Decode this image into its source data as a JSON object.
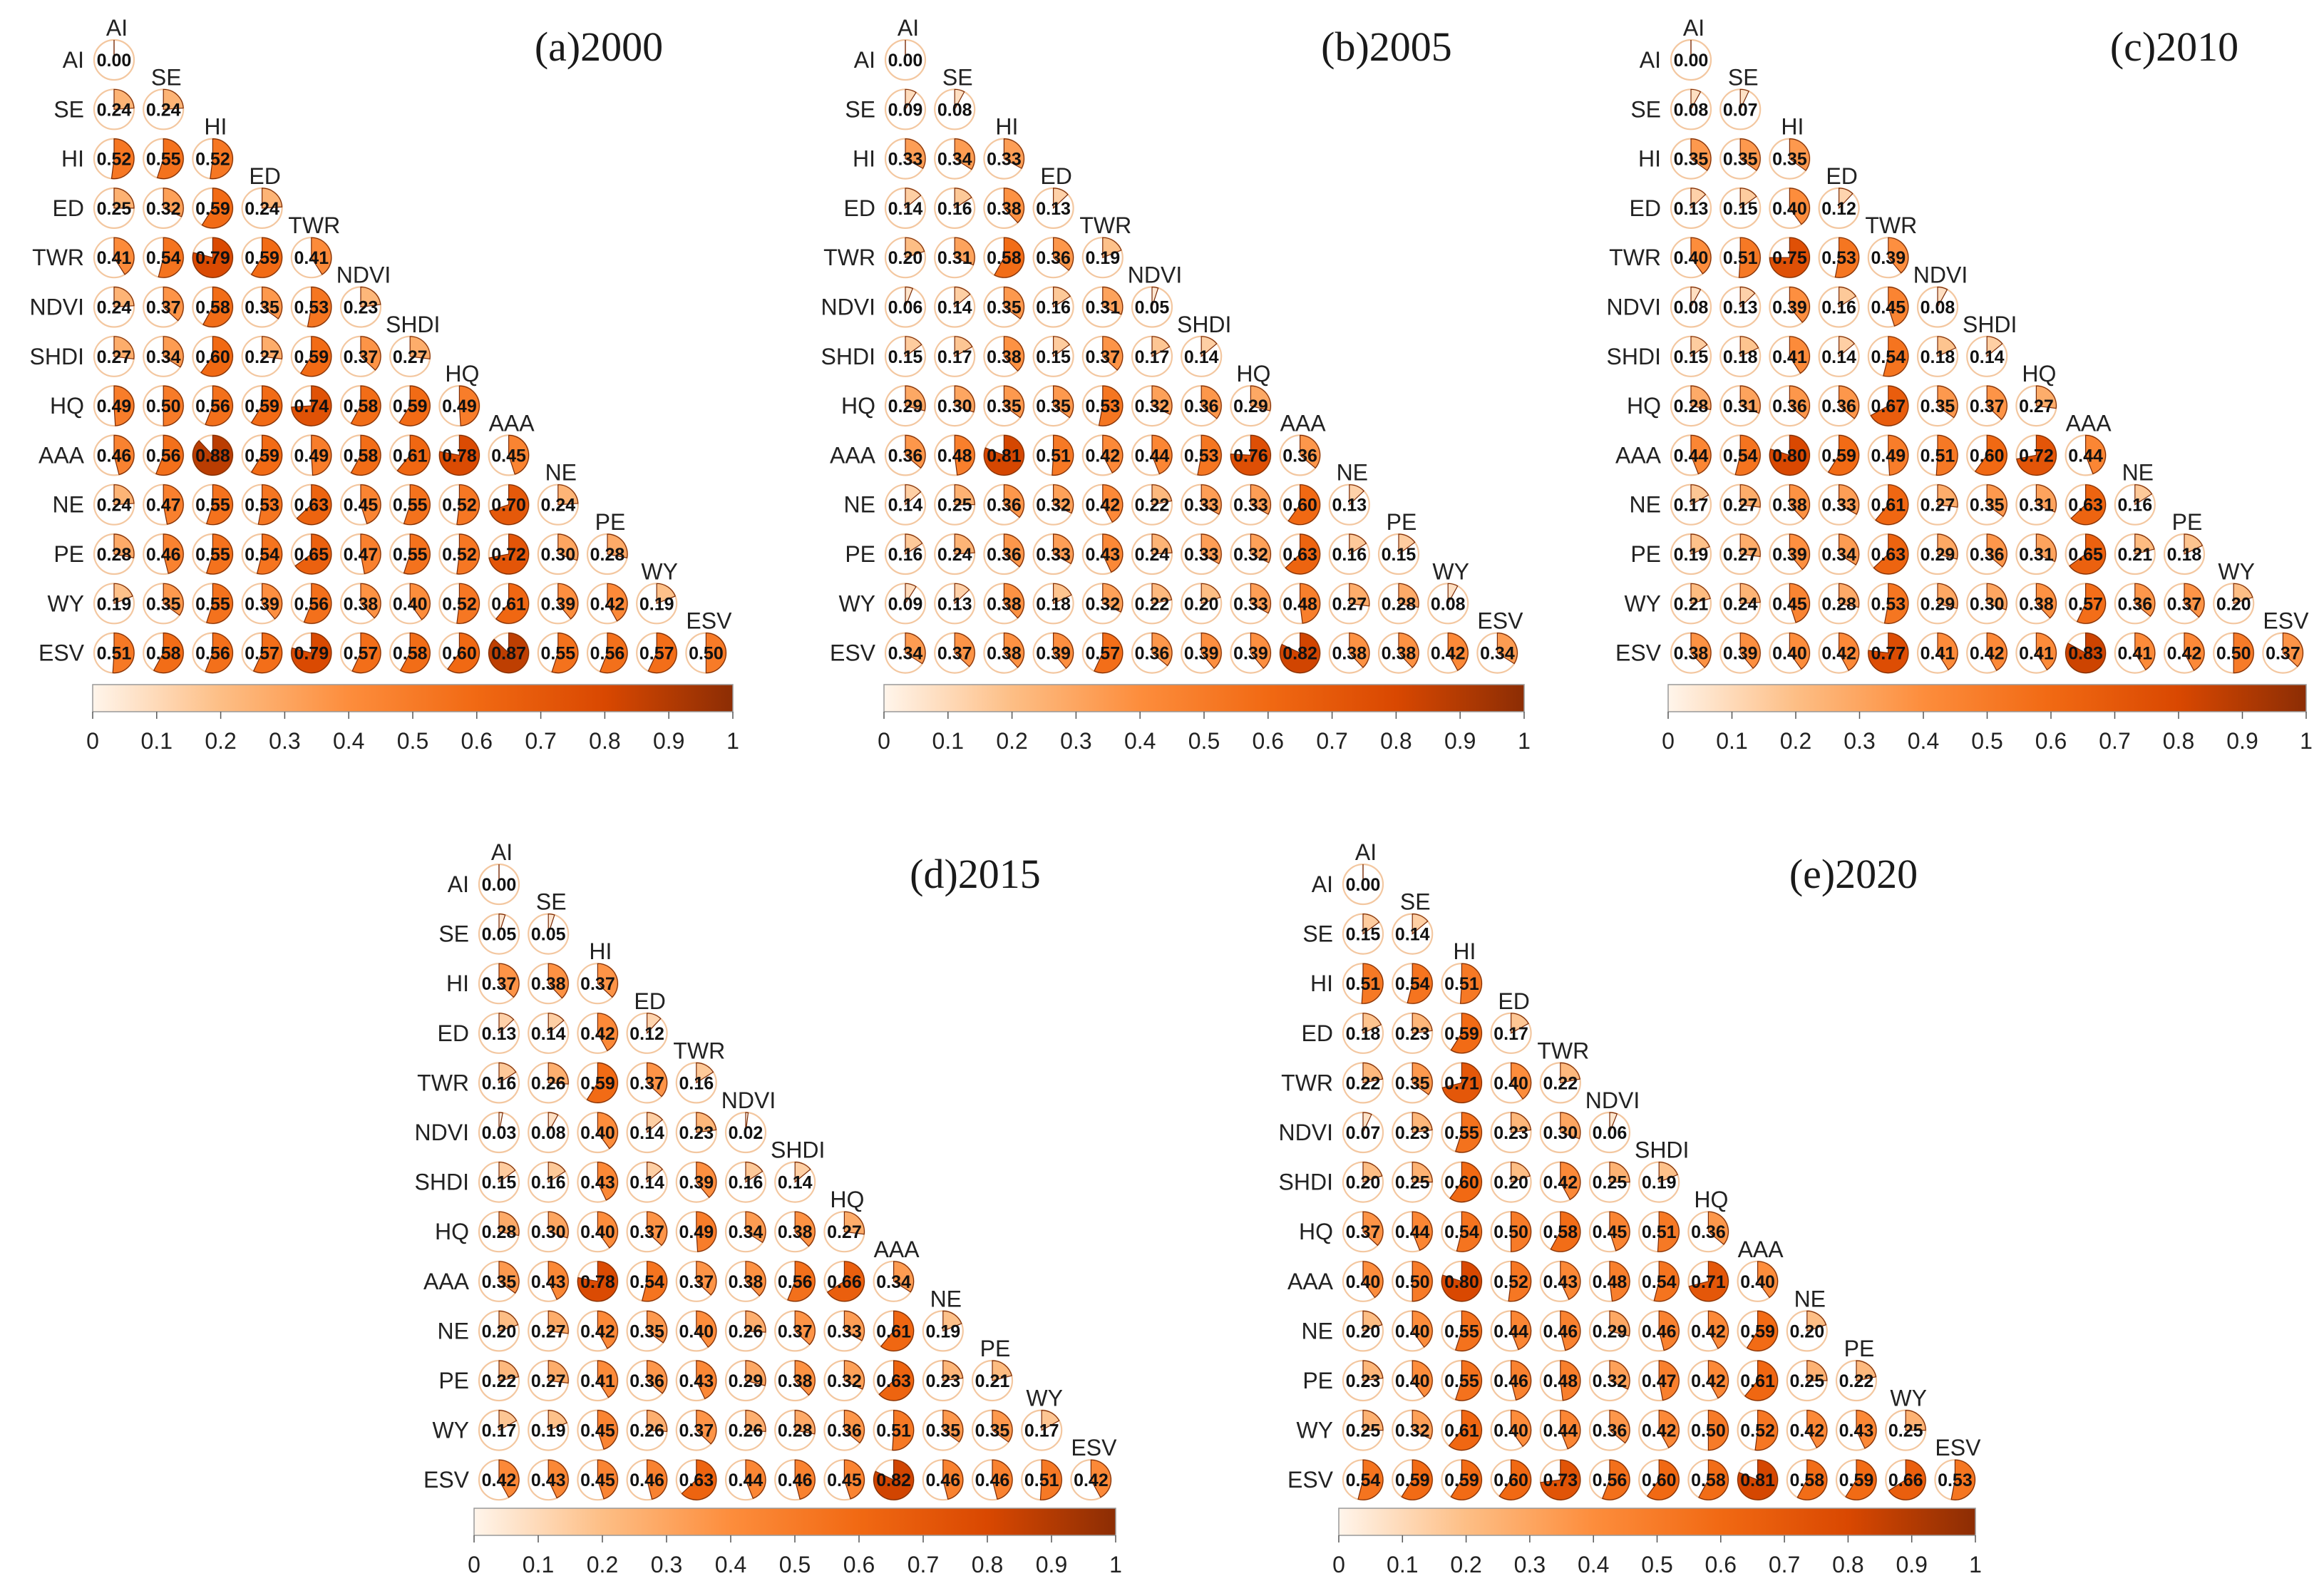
{
  "variables": [
    "AI",
    "SE",
    "HI",
    "ED",
    "TWR",
    "NDVI",
    "SHDI",
    "HQ",
    "AAA",
    "NE",
    "PE",
    "WY",
    "ESV"
  ],
  "colorbar": {
    "ticks": [
      "0",
      "0.1",
      "0.2",
      "0.3",
      "0.4",
      "0.5",
      "0.6",
      "0.7",
      "0.8",
      "0.9",
      "1"
    ],
    "stops": [
      "#fff5eb",
      "#fdbe85",
      "#fd8d3c",
      "#f16913",
      "#d94801",
      "#8c2d04"
    ]
  },
  "chart_data": [
    {
      "type": "heatmap",
      "title": "(a)2000",
      "labels": [
        "AI",
        "SE",
        "HI",
        "ED",
        "TWR",
        "NDVI",
        "SHDI",
        "HQ",
        "AAA",
        "NE",
        "PE",
        "WY",
        "ESV"
      ],
      "range": [
        0,
        1
      ],
      "values": [
        [
          0.0
        ],
        [
          0.24,
          0.24
        ],
        [
          0.52,
          0.55,
          0.52
        ],
        [
          0.25,
          0.32,
          0.59,
          0.24
        ],
        [
          0.41,
          0.54,
          0.79,
          0.59,
          0.41
        ],
        [
          0.24,
          0.37,
          0.58,
          0.35,
          0.53,
          0.23
        ],
        [
          0.27,
          0.34,
          0.6,
          0.27,
          0.59,
          0.37,
          0.27
        ],
        [
          0.49,
          0.5,
          0.56,
          0.59,
          0.74,
          0.58,
          0.59,
          0.49
        ],
        [
          0.46,
          0.56,
          0.88,
          0.59,
          0.49,
          0.58,
          0.61,
          0.78,
          0.45
        ],
        [
          0.24,
          0.47,
          0.55,
          0.53,
          0.63,
          0.45,
          0.55,
          0.52,
          0.7,
          0.24
        ],
        [
          0.28,
          0.46,
          0.55,
          0.54,
          0.65,
          0.47,
          0.55,
          0.52,
          0.72,
          0.3,
          0.28
        ],
        [
          0.19,
          0.35,
          0.55,
          0.39,
          0.56,
          0.38,
          0.4,
          0.52,
          0.61,
          0.39,
          0.42,
          0.19
        ],
        [
          0.51,
          0.58,
          0.56,
          0.57,
          0.79,
          0.57,
          0.58,
          0.6,
          0.87,
          0.55,
          0.56,
          0.57,
          0.5
        ]
      ]
    },
    {
      "type": "heatmap",
      "title": "(b)2005",
      "labels": [
        "AI",
        "SE",
        "HI",
        "ED",
        "TWR",
        "NDVI",
        "SHDI",
        "HQ",
        "AAA",
        "NE",
        "PE",
        "WY",
        "ESV"
      ],
      "range": [
        0,
        1
      ],
      "values": [
        [
          0.0
        ],
        [
          0.09,
          0.08
        ],
        [
          0.33,
          0.34,
          0.33
        ],
        [
          0.14,
          0.16,
          0.38,
          0.13
        ],
        [
          0.2,
          0.31,
          0.58,
          0.36,
          0.19
        ],
        [
          0.06,
          0.14,
          0.35,
          0.16,
          0.31,
          0.05
        ],
        [
          0.15,
          0.17,
          0.38,
          0.15,
          0.37,
          0.17,
          0.14
        ],
        [
          0.29,
          0.3,
          0.35,
          0.35,
          0.53,
          0.32,
          0.36,
          0.29
        ],
        [
          0.36,
          0.48,
          0.81,
          0.51,
          0.42,
          0.44,
          0.53,
          0.76,
          0.36
        ],
        [
          0.14,
          0.25,
          0.36,
          0.32,
          0.42,
          0.22,
          0.33,
          0.33,
          0.6,
          0.13
        ],
        [
          0.16,
          0.24,
          0.36,
          0.33,
          0.43,
          0.24,
          0.33,
          0.32,
          0.63,
          0.16,
          0.15
        ],
        [
          0.09,
          0.13,
          0.38,
          0.18,
          0.32,
          0.22,
          0.2,
          0.33,
          0.48,
          0.27,
          0.28,
          0.08
        ],
        [
          0.34,
          0.37,
          0.38,
          0.39,
          0.57,
          0.36,
          0.39,
          0.39,
          0.82,
          0.38,
          0.38,
          0.42,
          0.34
        ]
      ]
    },
    {
      "type": "heatmap",
      "title": "(c)2010",
      "labels": [
        "AI",
        "SE",
        "HI",
        "ED",
        "TWR",
        "NDVI",
        "SHDI",
        "HQ",
        "AAA",
        "NE",
        "PE",
        "WY",
        "ESV"
      ],
      "range": [
        0,
        1
      ],
      "values": [
        [
          0.0
        ],
        [
          0.08,
          0.07
        ],
        [
          0.35,
          0.35,
          0.35
        ],
        [
          0.13,
          0.15,
          0.4,
          0.12
        ],
        [
          0.4,
          0.51,
          0.75,
          0.53,
          0.39
        ],
        [
          0.08,
          0.13,
          0.39,
          0.16,
          0.45,
          0.08
        ],
        [
          0.15,
          0.18,
          0.41,
          0.14,
          0.54,
          0.18,
          0.14
        ],
        [
          0.28,
          0.31,
          0.36,
          0.36,
          0.67,
          0.35,
          0.37,
          0.27
        ],
        [
          0.44,
          0.54,
          0.8,
          0.59,
          0.49,
          0.51,
          0.6,
          0.72,
          0.44
        ],
        [
          0.17,
          0.27,
          0.38,
          0.33,
          0.61,
          0.27,
          0.35,
          0.31,
          0.63,
          0.16
        ],
        [
          0.19,
          0.27,
          0.39,
          0.34,
          0.63,
          0.29,
          0.36,
          0.31,
          0.65,
          0.21,
          0.18
        ],
        [
          0.21,
          0.24,
          0.45,
          0.28,
          0.53,
          0.29,
          0.3,
          0.38,
          0.57,
          0.36,
          0.37,
          0.2
        ],
        [
          0.38,
          0.39,
          0.4,
          0.42,
          0.77,
          0.41,
          0.42,
          0.41,
          0.83,
          0.41,
          0.42,
          0.5,
          0.37
        ]
      ]
    },
    {
      "type": "heatmap",
      "title": "(d)2015",
      "labels": [
        "AI",
        "SE",
        "HI",
        "ED",
        "TWR",
        "NDVI",
        "SHDI",
        "HQ",
        "AAA",
        "NE",
        "PE",
        "WY",
        "ESV"
      ],
      "range": [
        0,
        1
      ],
      "values": [
        [
          0.0
        ],
        [
          0.05,
          0.05
        ],
        [
          0.37,
          0.38,
          0.37
        ],
        [
          0.13,
          0.14,
          0.42,
          0.12
        ],
        [
          0.16,
          0.26,
          0.59,
          0.37,
          0.16
        ],
        [
          0.03,
          0.08,
          0.4,
          0.14,
          0.23,
          0.02
        ],
        [
          0.15,
          0.16,
          0.43,
          0.14,
          0.39,
          0.16,
          0.14
        ],
        [
          0.28,
          0.3,
          0.4,
          0.37,
          0.49,
          0.34,
          0.38,
          0.27
        ],
        [
          0.35,
          0.43,
          0.78,
          0.54,
          0.37,
          0.38,
          0.56,
          0.66,
          0.34
        ],
        [
          0.2,
          0.27,
          0.42,
          0.35,
          0.4,
          0.26,
          0.37,
          0.33,
          0.61,
          0.19
        ],
        [
          0.22,
          0.27,
          0.41,
          0.36,
          0.43,
          0.29,
          0.38,
          0.32,
          0.63,
          0.23,
          0.21
        ],
        [
          0.17,
          0.19,
          0.45,
          0.26,
          0.37,
          0.26,
          0.28,
          0.36,
          0.51,
          0.35,
          0.35,
          0.17
        ],
        [
          0.42,
          0.43,
          0.45,
          0.46,
          0.63,
          0.44,
          0.46,
          0.45,
          0.82,
          0.46,
          0.46,
          0.51,
          0.42
        ]
      ]
    },
    {
      "type": "heatmap",
      "title": "(e)2020",
      "labels": [
        "AI",
        "SE",
        "HI",
        "ED",
        "TWR",
        "NDVI",
        "SHDI",
        "HQ",
        "AAA",
        "NE",
        "PE",
        "WY",
        "ESV"
      ],
      "range": [
        0,
        1
      ],
      "values": [
        [
          0.0
        ],
        [
          0.15,
          0.14
        ],
        [
          0.51,
          0.54,
          0.51
        ],
        [
          0.18,
          0.23,
          0.59,
          0.17
        ],
        [
          0.22,
          0.35,
          0.71,
          0.4,
          0.22
        ],
        [
          0.07,
          0.23,
          0.55,
          0.23,
          0.3,
          0.06
        ],
        [
          0.2,
          0.25,
          0.6,
          0.2,
          0.42,
          0.25,
          0.19
        ],
        [
          0.37,
          0.44,
          0.54,
          0.5,
          0.58,
          0.45,
          0.51,
          0.36
        ],
        [
          0.4,
          0.5,
          0.8,
          0.52,
          0.43,
          0.48,
          0.54,
          0.71,
          0.4
        ],
        [
          0.2,
          0.4,
          0.55,
          0.44,
          0.46,
          0.29,
          0.46,
          0.42,
          0.59,
          0.2
        ],
        [
          0.23,
          0.4,
          0.55,
          0.46,
          0.48,
          0.32,
          0.47,
          0.42,
          0.61,
          0.25,
          0.22
        ],
        [
          0.25,
          0.32,
          0.61,
          0.4,
          0.44,
          0.36,
          0.42,
          0.5,
          0.52,
          0.42,
          0.43,
          0.25
        ],
        [
          0.54,
          0.59,
          0.59,
          0.6,
          0.73,
          0.56,
          0.6,
          0.58,
          0.81,
          0.58,
          0.59,
          0.66,
          0.53
        ]
      ]
    }
  ]
}
